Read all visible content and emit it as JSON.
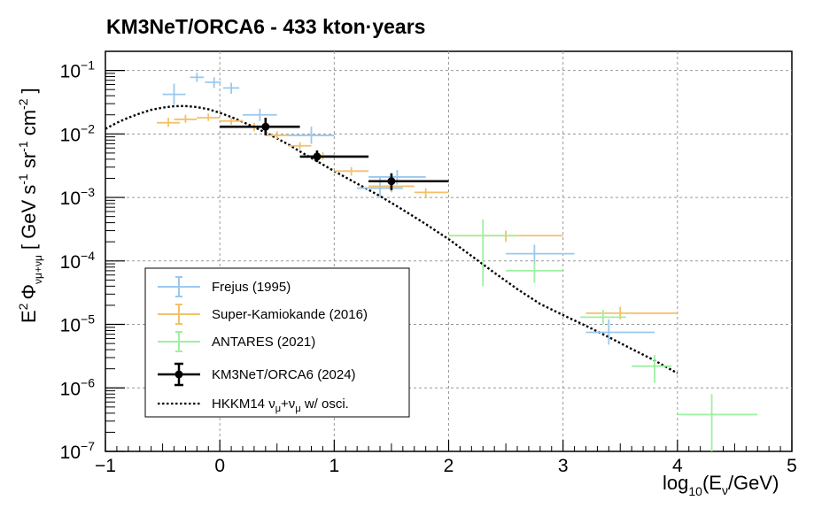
{
  "chart_data": {
    "type": "scatter",
    "title": "KM3NeT/ORCA6 - 433 kton·years",
    "xlabel": "log10(Eν/GeV)",
    "ylabel": "E2 Φ(νμ+anti-νμ) [ GeV s-1 sr-1 cm-2 ]",
    "xlim": [
      -1,
      5
    ],
    "ylim": [
      1e-07,
      0.2
    ],
    "yscale": "log",
    "grid": true,
    "legend_position": "bottom-left",
    "x_ticks": [
      "−1",
      "0",
      "1",
      "2",
      "3",
      "4",
      "5"
    ],
    "y_ticks": [
      {
        "base": "10",
        "exp": "−1",
        "value": 0.1
      },
      {
        "base": "10",
        "exp": "−2",
        "value": 0.01
      },
      {
        "base": "10",
        "exp": "−3",
        "value": 0.001
      },
      {
        "base": "10",
        "exp": "−4",
        "value": 0.0001
      },
      {
        "base": "10",
        "exp": "−5",
        "value": 1e-05
      },
      {
        "base": "10",
        "exp": "−6",
        "value": 1e-06
      },
      {
        "base": "10",
        "exp": "−7",
        "value": 1e-07
      }
    ],
    "series": [
      {
        "name": "Frejus (1995)",
        "color": "#9ac8ee",
        "points": [
          {
            "x": -0.4,
            "xerr": [
              0.1,
              0.1
            ],
            "y": 0.042,
            "ylo": 0.029,
            "yhi": 0.062
          },
          {
            "x": -0.2,
            "xerr": [
              0.06,
              0.06
            ],
            "y": 0.078,
            "ylo": 0.066,
            "yhi": 0.092
          },
          {
            "x": -0.05,
            "xerr": [
              0.08,
              0.06
            ],
            "y": 0.065,
            "ylo": 0.053,
            "yhi": 0.078
          },
          {
            "x": 0.1,
            "xerr": [
              0.07,
              0.07
            ],
            "y": 0.053,
            "ylo": 0.043,
            "yhi": 0.064
          },
          {
            "x": 0.35,
            "xerr": [
              0.15,
              0.15
            ],
            "y": 0.02,
            "ylo": 0.016,
            "yhi": 0.025
          },
          {
            "x": 0.8,
            "xerr": [
              0.2,
              0.2
            ],
            "y": 0.0095,
            "ylo": 0.007,
            "yhi": 0.013
          },
          {
            "x": 1.4,
            "xerr": [
              0.2,
              0.2
            ],
            "y": 0.0014,
            "ylo": 0.001,
            "yhi": 0.0021
          },
          {
            "x": 1.55,
            "xerr": [
              0.25,
              0.25
            ],
            "y": 0.0021,
            "ylo": 0.0016,
            "yhi": 0.0027
          },
          {
            "x": 2.75,
            "xerr": [
              0.25,
              0.35
            ],
            "y": 0.00013,
            "ylo": 9e-05,
            "yhi": 0.00018
          },
          {
            "x": 3.4,
            "xerr": [
              0.2,
              0.4
            ],
            "y": 7.5e-06,
            "ylo": 4.8e-06,
            "yhi": 1.2e-05
          }
        ]
      },
      {
        "name": "Super-Kamiokande (2016)",
        "color": "#f3c06a",
        "points": [
          {
            "x": -0.45,
            "xerr": [
              0.1,
              0.1
            ],
            "y": 0.015,
            "ylo": 0.013,
            "yhi": 0.018
          },
          {
            "x": -0.3,
            "xerr": [
              0.1,
              0.1
            ],
            "y": 0.017,
            "ylo": 0.015,
            "yhi": 0.02
          },
          {
            "x": -0.1,
            "xerr": [
              0.1,
              0.1
            ],
            "y": 0.018,
            "ylo": 0.016,
            "yhi": 0.021
          },
          {
            "x": 0.1,
            "xerr": [
              0.1,
              0.1
            ],
            "y": 0.016,
            "ylo": 0.014,
            "yhi": 0.018
          },
          {
            "x": 0.3,
            "xerr": [
              0.1,
              0.1
            ],
            "y": 0.013,
            "ylo": 0.011,
            "yhi": 0.015
          },
          {
            "x": 0.5,
            "xerr": [
              0.1,
              0.1
            ],
            "y": 0.0095,
            "ylo": 0.0083,
            "yhi": 0.011
          },
          {
            "x": 0.7,
            "xerr": [
              0.1,
              0.1
            ],
            "y": 0.0065,
            "ylo": 0.0057,
            "yhi": 0.0074
          },
          {
            "x": 0.9,
            "xerr": [
              0.1,
              0.1
            ],
            "y": 0.0045,
            "ylo": 0.0039,
            "yhi": 0.0052
          },
          {
            "x": 1.15,
            "xerr": [
              0.15,
              0.15
            ],
            "y": 0.0026,
            "ylo": 0.0022,
            "yhi": 0.003
          },
          {
            "x": 1.5,
            "xerr": [
              0.2,
              0.2
            ],
            "y": 0.0015,
            "ylo": 0.0012,
            "yhi": 0.0018
          },
          {
            "x": 1.8,
            "xerr": [
              0.1,
              0.2
            ],
            "y": 0.0012,
            "ylo": 0.001,
            "yhi": 0.0014
          },
          {
            "x": 2.5,
            "xerr": [
              0.5,
              0.5
            ],
            "y": 0.00025,
            "ylo": 0.0002,
            "yhi": 0.0003
          },
          {
            "x": 3.5,
            "xerr": [
              0.3,
              0.5
            ],
            "y": 1.5e-05,
            "ylo": 1.2e-05,
            "yhi": 1.9e-05
          }
        ]
      },
      {
        "name": "ANTARES (2021)",
        "color": "#9ef0a0",
        "points": [
          {
            "x": 2.3,
            "xerr": [
              0.3,
              0.3
            ],
            "y": 0.00025,
            "ylo": 4e-05,
            "yhi": 0.00045
          },
          {
            "x": 2.75,
            "xerr": [
              0.25,
              0.25
            ],
            "y": 7e-05,
            "ylo": 4.5e-05,
            "yhi": 9.5e-05
          },
          {
            "x": 3.35,
            "xerr": [
              0.2,
              0.2
            ],
            "y": 1.3e-05,
            "ylo": 1e-05,
            "yhi": 1.7e-05
          },
          {
            "x": 3.8,
            "xerr": [
              0.2,
              0.15
            ],
            "y": 2.2e-06,
            "ylo": 1.2e-06,
            "yhi": 3.3e-06
          },
          {
            "x": 4.3,
            "xerr": [
              0.3,
              0.4
            ],
            "y": 3.8e-07,
            "ylo": 1e-07,
            "yhi": 8e-07
          }
        ]
      },
      {
        "name": "KM3NeT/ORCA6 (2024)",
        "color": "#000000",
        "points": [
          {
            "x": 0.4,
            "xerr": [
              0.4,
              0.3
            ],
            "y": 0.013,
            "ylo": 0.0095,
            "yhi": 0.018
          },
          {
            "x": 0.85,
            "xerr": [
              0.15,
              0.45
            ],
            "y": 0.0044,
            "ylo": 0.0036,
            "yhi": 0.0055
          },
          {
            "x": 1.5,
            "xerr": [
              0.2,
              0.5
            ],
            "y": 0.0018,
            "ylo": 0.0013,
            "yhi": 0.0024
          }
        ]
      }
    ],
    "model": {
      "name": "HKKM14 νμ+anti-νμ w/ osci.",
      "x": [
        -1,
        -0.9,
        -0.8,
        -0.7,
        -0.6,
        -0.5,
        -0.4,
        -0.3,
        -0.2,
        -0.1,
        0,
        0.1,
        0.2,
        0.3,
        0.4,
        0.5,
        0.6,
        0.7,
        0.8,
        0.9,
        1.0,
        1.2,
        1.4,
        1.6,
        1.8,
        2.0,
        2.2,
        2.4,
        2.6,
        2.8,
        3.0,
        3.2,
        3.4,
        3.6,
        3.8,
        4.0
      ],
      "y": [
        0.012,
        0.015,
        0.018,
        0.021,
        0.024,
        0.026,
        0.0273,
        0.0275,
        0.0265,
        0.0245,
        0.0215,
        0.0185,
        0.0155,
        0.0128,
        0.0105,
        0.0085,
        0.0068,
        0.0053,
        0.0042,
        0.0033,
        0.0026,
        0.00165,
        0.00105,
        0.00064,
        0.00038,
        0.00022,
        0.00012,
        6.5e-05,
        3.6e-05,
        2.1e-05,
        1.4e-05,
        9.5e-06,
        6.3e-06,
        4.1e-06,
        2.7e-06,
        1.7e-06
      ]
    }
  },
  "labels": {
    "title": "KM3NeT/ORCA6 - 433 kton·years",
    "x_main": "log",
    "x_sub": "10",
    "x_paren": "(E",
    "x_nu_sub": "ν",
    "x_unit": "/GeV)",
    "y_e": "E",
    "y_sq": "2",
    "y_phi": "Φ",
    "y_phi_sub": "νμ+νμ",
    "y_bracket": "[ GeV s",
    "y_s_exp": "-1",
    "y_sr": " sr",
    "y_sr_exp": "-1",
    "y_cm": " cm",
    "y_cm_exp": "-2",
    "y_close": " ]"
  },
  "legend": {
    "entries": [
      {
        "label": "Frejus (1995)",
        "color": "#9ac8ee"
      },
      {
        "label": "Super-Kamiokande (2016)",
        "color": "#f3c06a"
      },
      {
        "label": "ANTARES (2021)",
        "color": "#9ef0a0"
      },
      {
        "label": "KM3NeT/ORCA6 (2024)",
        "color": "#000000"
      }
    ],
    "model_label_pre": "HKKM14 ν",
    "model_label_sub1": "μ",
    "model_label_mid": "+ν",
    "model_label_sub2": "μ",
    "model_label_post": " w/ osci."
  }
}
